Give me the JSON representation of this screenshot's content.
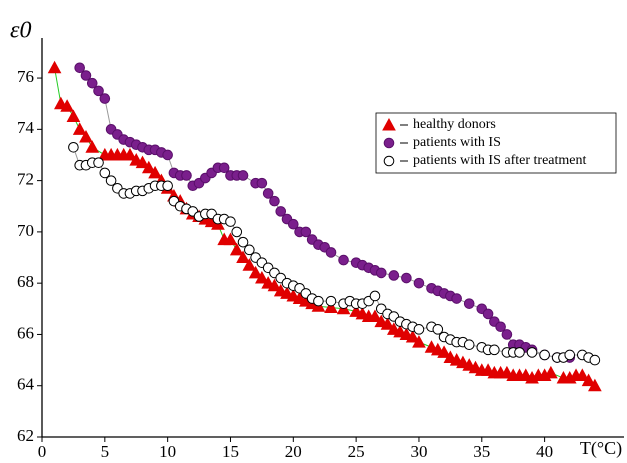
{
  "chart_data": {
    "type": "scatter",
    "y_label": "ε0",
    "x_label": "T(°C)",
    "xlim": [
      0,
      46
    ],
    "ylim": [
      62,
      77.5
    ],
    "xticks": [
      0,
      5,
      10,
      15,
      20,
      25,
      30,
      35,
      40
    ],
    "yticks": [
      62,
      64,
      66,
      68,
      70,
      72,
      74,
      76
    ],
    "legend": "upper right",
    "series": [
      {
        "name": "healthy donors",
        "marker": "triangle",
        "color": "#e00000",
        "edge": "#e00000",
        "line_color": "#22cc22",
        "x": [
          1,
          1.5,
          2,
          2.5,
          3,
          3.5,
          4,
          5,
          5.5,
          6,
          6.5,
          7,
          7.5,
          8,
          8.5,
          9,
          9.5,
          10,
          10.5,
          11,
          11.5,
          12,
          12.5,
          13,
          13.5,
          14,
          14.5,
          15,
          15.5,
          16,
          16.5,
          17,
          17.5,
          18,
          18.5,
          19,
          19.5,
          20,
          20.5,
          21,
          21.5,
          22,
          23,
          24,
          25,
          25.5,
          26,
          26.5,
          27,
          27.5,
          28,
          28.5,
          29,
          29.5,
          30,
          31,
          31.5,
          32,
          32.5,
          33,
          33.5,
          34,
          34.5,
          35,
          35.5,
          36,
          36.5,
          37,
          37.5,
          38,
          38.5,
          39,
          39.5,
          40,
          40.5,
          41.5,
          42,
          42.5,
          43,
          43.5,
          44
        ],
        "values": [
          76.4,
          75,
          74.9,
          74.5,
          74,
          73.7,
          73.3,
          73,
          73,
          73,
          73,
          73,
          72.8,
          72.7,
          72.5,
          72.3,
          72,
          71.7,
          71.4,
          71.2,
          70.9,
          70.7,
          70.6,
          70.5,
          70.4,
          70.3,
          69.7,
          69.7,
          69.3,
          69,
          68.7,
          68.4,
          68.2,
          68,
          67.9,
          67.7,
          67.6,
          67.5,
          67.4,
          67.3,
          67.2,
          67.1,
          67.05,
          67,
          66.9,
          66.8,
          66.7,
          66.7,
          66.5,
          66.4,
          66.2,
          66.1,
          66,
          65.9,
          65.7,
          65.5,
          65.4,
          65.3,
          65.1,
          65,
          64.9,
          64.8,
          64.7,
          64.6,
          64.6,
          64.5,
          64.5,
          64.5,
          64.4,
          64.4,
          64.4,
          64.3,
          64.4,
          64.4,
          64.5,
          64.3,
          64.3,
          64.4,
          64.4,
          64.2,
          64
        ]
      },
      {
        "name": "patients with IS",
        "marker": "circle",
        "color": "#7a1f8c",
        "edge": "#5a0f6a",
        "line_color": "#999999",
        "x": [
          3,
          3.5,
          4,
          4.5,
          5,
          5.5,
          6,
          6.5,
          7,
          7.5,
          8,
          8.5,
          9,
          9.5,
          10,
          10.5,
          11,
          11.5,
          12,
          12.5,
          13,
          13.5,
          14,
          14.5,
          15,
          15.5,
          16,
          17,
          17.5,
          18,
          18.5,
          19,
          19.5,
          20,
          20.5,
          21,
          21.5,
          22,
          22.5,
          23,
          24,
          25,
          25.5,
          26,
          26.5,
          27,
          28,
          29,
          30,
          31,
          31.5,
          32,
          32.5,
          33,
          34,
          35,
          35.5,
          36,
          36.5,
          37,
          37.5,
          38,
          38.5,
          39,
          40,
          41,
          42
        ],
        "values": [
          76.4,
          76.1,
          75.8,
          75.5,
          75.2,
          74,
          73.8,
          73.6,
          73.5,
          73.4,
          73.3,
          73.2,
          73.2,
          73.1,
          73,
          72.3,
          72.2,
          72.2,
          71.8,
          71.9,
          72.1,
          72.3,
          72.5,
          72.5,
          72.2,
          72.2,
          72.2,
          71.9,
          71.9,
          71.5,
          71.2,
          70.8,
          70.5,
          70.3,
          70,
          70,
          69.7,
          69.5,
          69.4,
          69.2,
          68.9,
          68.8,
          68.7,
          68.6,
          68.5,
          68.4,
          68.3,
          68.2,
          68,
          67.8,
          67.7,
          67.6,
          67.5,
          67.4,
          67.2,
          67,
          66.8,
          66.5,
          66.3,
          66,
          65.6,
          65.6,
          65.5,
          65.4,
          65.2,
          65.1,
          65.1
        ]
      },
      {
        "name": "patients with IS after treatment",
        "marker": "circle",
        "color": "#ffffff",
        "edge": "#000000",
        "line_color": "#999999",
        "x": [
          2.5,
          3,
          3.5,
          4,
          4.5,
          5,
          5.5,
          6,
          6.5,
          7,
          7.5,
          8,
          8.5,
          9,
          9.5,
          10,
          10.5,
          11,
          11.5,
          12,
          12.5,
          13,
          13.5,
          14,
          14.5,
          15,
          15.5,
          16,
          16.5,
          17,
          17.5,
          18,
          18.5,
          19,
          19.5,
          20,
          20.5,
          21,
          21.5,
          22,
          23,
          24,
          24.5,
          25,
          25.5,
          26,
          26.5,
          27,
          27.5,
          28,
          28.5,
          29,
          29.5,
          30,
          31,
          31.5,
          32,
          32.5,
          33,
          33.5,
          34,
          35,
          35.5,
          36,
          37,
          37.5,
          38,
          39,
          40,
          41,
          41.5,
          42,
          43,
          43.5,
          44
        ],
        "values": [
          73.3,
          72.6,
          72.6,
          72.7,
          72.7,
          72.3,
          72,
          71.7,
          71.5,
          71.5,
          71.6,
          71.6,
          71.7,
          71.8,
          71.8,
          71.8,
          71.2,
          71,
          70.9,
          70.8,
          70.6,
          70.7,
          70.7,
          70.5,
          70.5,
          70.4,
          70,
          69.6,
          69.3,
          69,
          68.8,
          68.6,
          68.4,
          68.2,
          68,
          67.9,
          67.8,
          67.6,
          67.4,
          67.3,
          67.3,
          67.2,
          67.3,
          67.2,
          67.2,
          67.3,
          67.5,
          67,
          66.8,
          66.7,
          66.5,
          66.4,
          66.3,
          66.2,
          66.3,
          66.2,
          65.9,
          65.8,
          65.7,
          65.7,
          65.6,
          65.5,
          65.4,
          65.4,
          65.3,
          65.3,
          65.3,
          65.3,
          65.2,
          65.1,
          65.1,
          65.2,
          65.2,
          65.1,
          65
        ]
      }
    ]
  }
}
